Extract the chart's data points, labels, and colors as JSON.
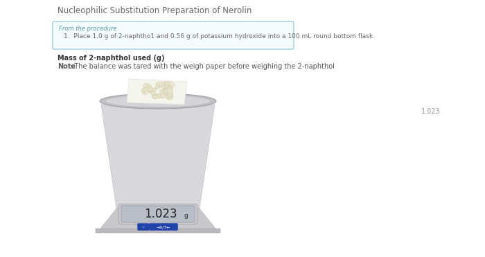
{
  "title": "Nucleophilic Substitution Preparation of Nerolin",
  "procedure_label": "From the procedure",
  "procedure_text": "1.  Place 1.0 g of 2-naphtho1 and 0.56 g of potassium hydroxide into a 100 mL round bottom flask.",
  "mass_label": "Mass of 2-naphthol used (g)",
  "note_bold": "Note",
  "note_text": ": The balance was tared with the weigh paper before weighing the 2-naphthol",
  "reading_value": "1.023",
  "reading_small": "g",
  "sidebar_value": "1.023",
  "bg_color": "#ffffff",
  "box_border_color": "#88bfcc",
  "box_bg_color": "#f4fbfc",
  "procedure_label_color": "#5a9aaa",
  "procedure_text_color": "#666666",
  "mass_label_color": "#333333",
  "note_color": "#555555",
  "title_color": "#666666",
  "scale_body_light": "#d8d8dc",
  "scale_body_mid": "#c8c8cc",
  "scale_body_dark": "#b8b8be",
  "scale_display_bg": "#b8bec8",
  "scale_display_text": "#222222",
  "scale_pan_color": "#c0c0c4",
  "scale_pan_edge": "#a0a0a4",
  "scale_pan_inner": "#d4d4d8",
  "btn_color": "#2244aa",
  "sidebar_color": "#999999",
  "paper_color": "#f5f5ee",
  "crystal_fill": "#e8e2cc",
  "crystal_edge": "#d0c8a0"
}
